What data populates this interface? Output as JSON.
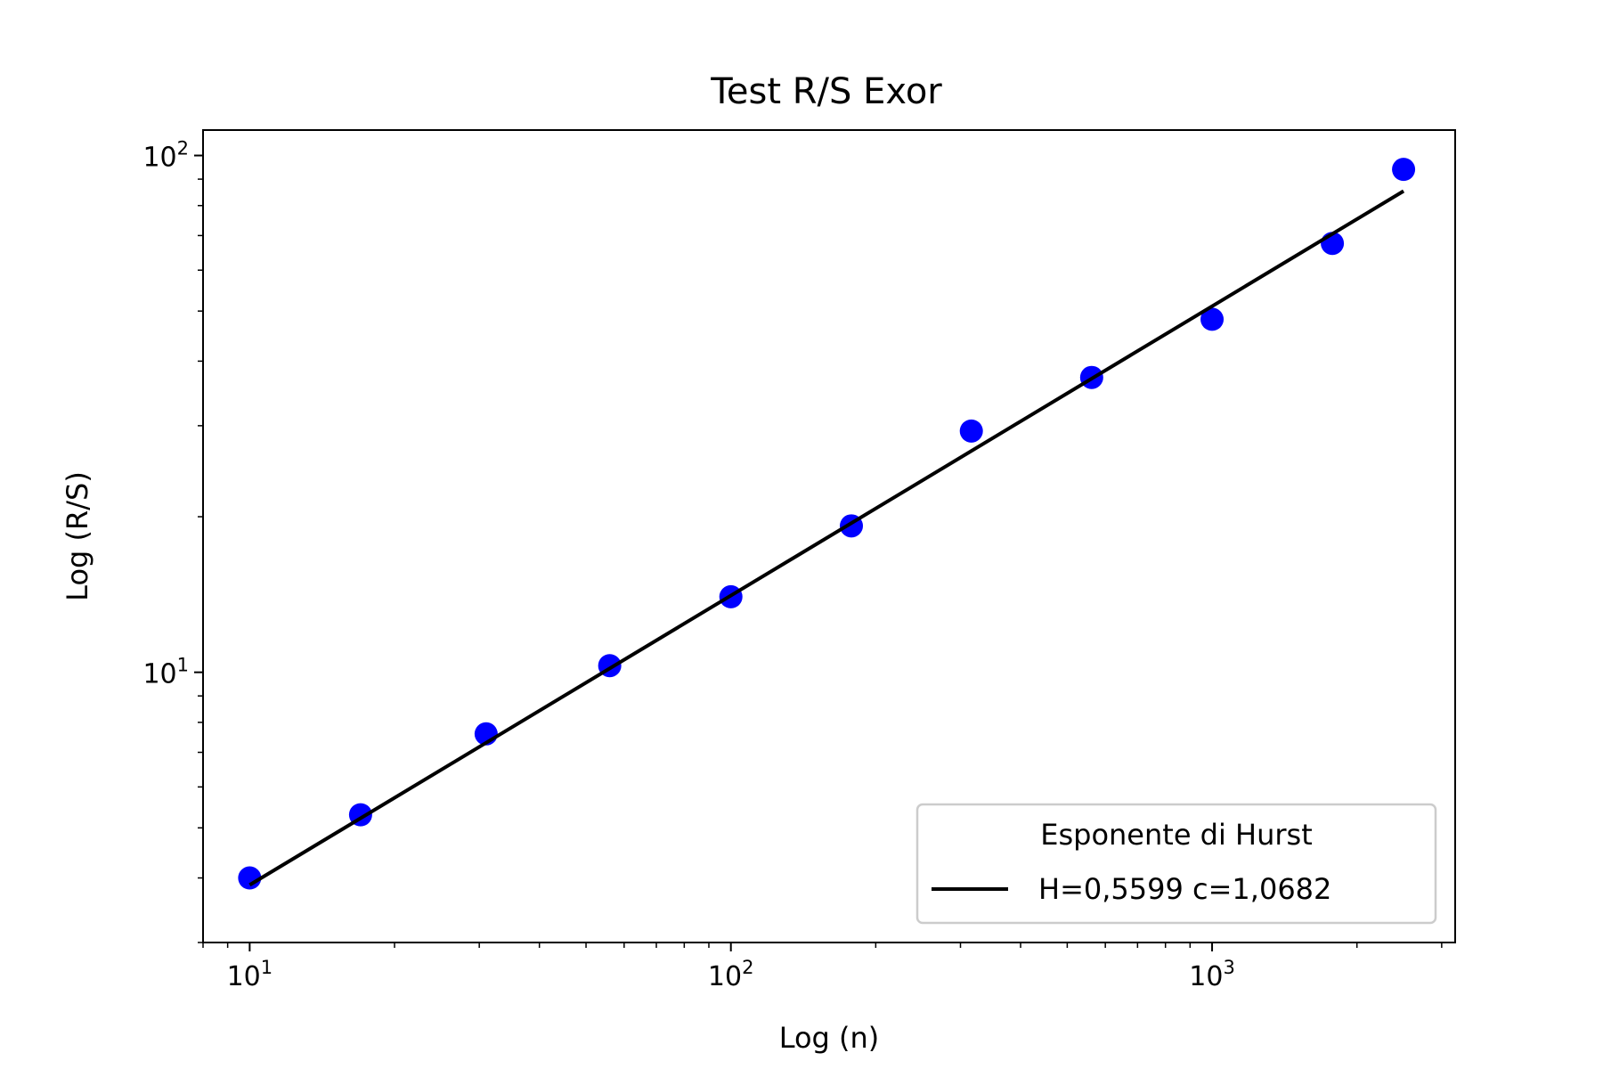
{
  "chart_data": {
    "type": "scatter",
    "title": "Test R/S Exor",
    "xlabel": "Log (n)",
    "ylabel": "Log (R/S)",
    "xscale": "log",
    "yscale": "log",
    "xlim": [
      8,
      3200
    ],
    "ylim": [
      3.0,
      112
    ],
    "grid": false,
    "x_ticks": [
      {
        "base": "10",
        "exp": "1",
        "value": 10
      },
      {
        "base": "10",
        "exp": "2",
        "value": 100
      },
      {
        "base": "10",
        "exp": "3",
        "value": 1000
      }
    ],
    "y_ticks": [
      {
        "base": "10",
        "exp": "1",
        "value": 10
      },
      {
        "base": "10",
        "exp": "2",
        "value": 100
      }
    ],
    "points": {
      "color": "#0000ff",
      "x": [
        10,
        17,
        31,
        56,
        100,
        178,
        316,
        562,
        1000,
        1778,
        2500
      ],
      "y": [
        4.0,
        5.3,
        7.6,
        10.3,
        14.0,
        19.2,
        29.3,
        37.2,
        48.2,
        67.6,
        94.0
      ]
    },
    "fit": {
      "name": "H=0,5599 c=1,0682",
      "color": "#000000",
      "H": 0.5599,
      "c": 1.0682,
      "x_range": [
        10,
        2500
      ]
    },
    "legend": {
      "title": "Esponente di Hurst",
      "position": "lower right"
    }
  }
}
